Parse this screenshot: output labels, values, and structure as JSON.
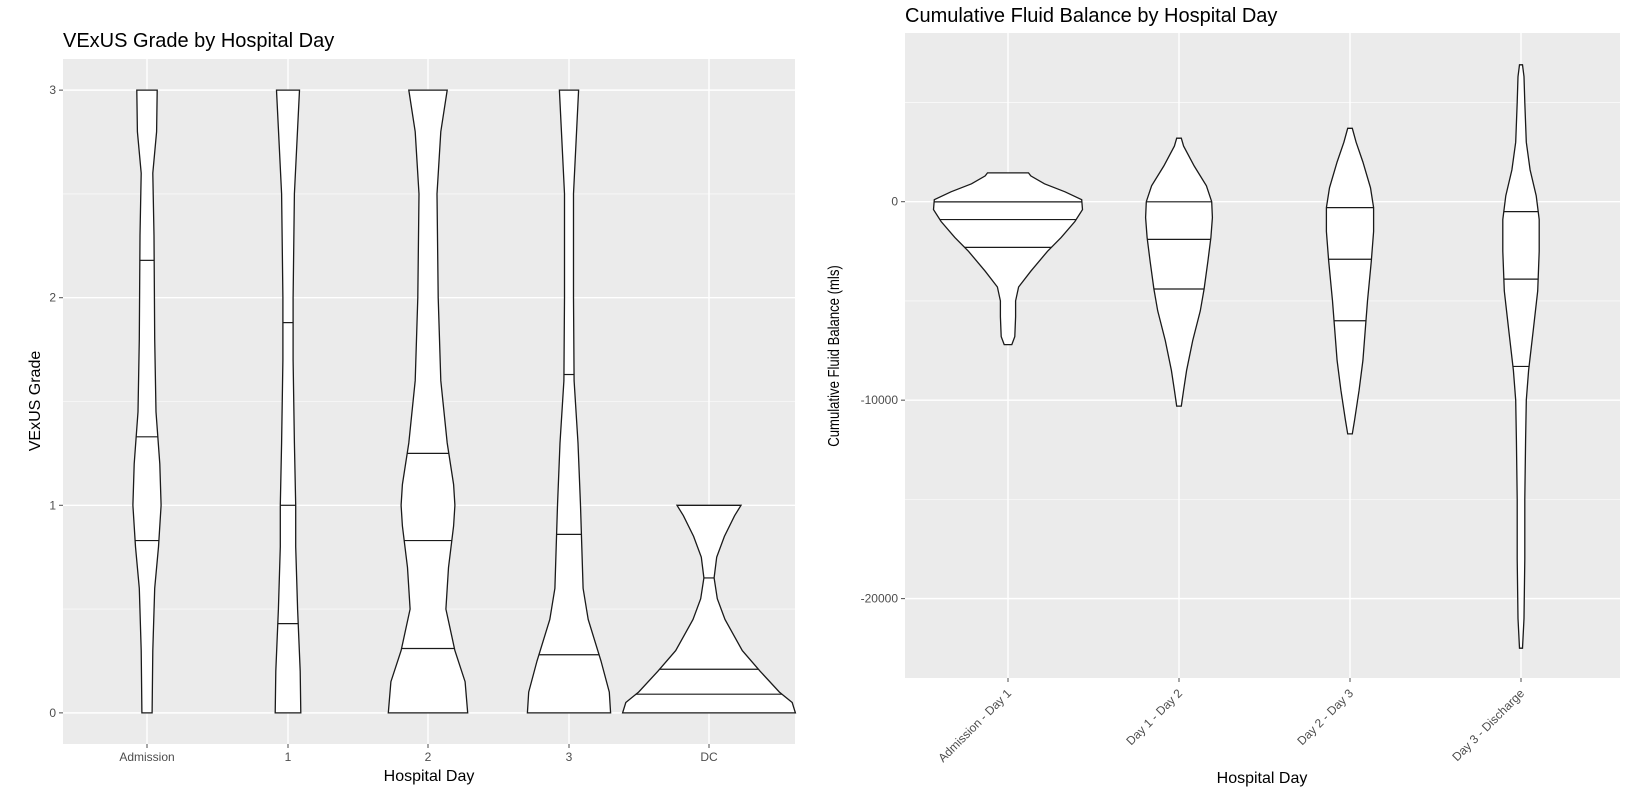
{
  "chart_data": [
    {
      "type": "violin",
      "title": "VExUS Grade by Hospital Day",
      "xlabel": "Hospital Day",
      "ylabel": "VExUS Grade",
      "categories": [
        "Admission",
        "1",
        "2",
        "3",
        "DC"
      ],
      "ylim": [
        -0.15,
        3.15
      ],
      "yticks": [
        0,
        1,
        2,
        3
      ],
      "grid": true,
      "violins": [
        {
          "category": "Admission",
          "quantiles": [
            0.83,
            1.33,
            2.18
          ],
          "profile": [
            [
              0,
              0.08
            ],
            [
              0.3,
              0.09
            ],
            [
              0.6,
              0.12
            ],
            [
              0.8,
              0.18
            ],
            [
              1.0,
              0.22
            ],
            [
              1.2,
              0.2
            ],
            [
              1.45,
              0.14
            ],
            [
              1.8,
              0.12
            ],
            [
              2.3,
              0.11
            ],
            [
              2.6,
              0.09
            ],
            [
              2.8,
              0.15
            ],
            [
              3.0,
              0.16
            ]
          ]
        },
        {
          "category": "1",
          "quantiles": [
            0.43,
            1.0,
            1.88
          ],
          "profile": [
            [
              0,
              0.2
            ],
            [
              0.2,
              0.19
            ],
            [
              0.5,
              0.15
            ],
            [
              0.8,
              0.12
            ],
            [
              1.0,
              0.12
            ],
            [
              1.3,
              0.1
            ],
            [
              1.7,
              0.08
            ],
            [
              2.0,
              0.08
            ],
            [
              2.5,
              0.1
            ],
            [
              3.0,
              0.18
            ]
          ]
        },
        {
          "category": "2",
          "quantiles": [
            0.31,
            0.83,
            1.25
          ],
          "profile": [
            [
              0,
              0.62
            ],
            [
              0.15,
              0.58
            ],
            [
              0.3,
              0.42
            ],
            [
              0.5,
              0.28
            ],
            [
              0.7,
              0.32
            ],
            [
              0.9,
              0.4
            ],
            [
              1.0,
              0.42
            ],
            [
              1.1,
              0.4
            ],
            [
              1.3,
              0.3
            ],
            [
              1.6,
              0.2
            ],
            [
              2.0,
              0.16
            ],
            [
              2.5,
              0.14
            ],
            [
              2.8,
              0.2
            ],
            [
              3.0,
              0.3
            ]
          ]
        },
        {
          "category": "3",
          "quantiles": [
            0.28,
            0.86,
            1.63
          ],
          "profile": [
            [
              0,
              0.65
            ],
            [
              0.1,
              0.63
            ],
            [
              0.25,
              0.5
            ],
            [
              0.45,
              0.3
            ],
            [
              0.6,
              0.22
            ],
            [
              0.8,
              0.2
            ],
            [
              1.0,
              0.18
            ],
            [
              1.3,
              0.14
            ],
            [
              1.6,
              0.08
            ],
            [
              2.0,
              0.07
            ],
            [
              2.5,
              0.07
            ],
            [
              3.0,
              0.15
            ]
          ]
        },
        {
          "category": "DC",
          "quantiles": [
            0.09,
            0.21,
            0.65
          ],
          "profile": [
            [
              0,
              1.35
            ],
            [
              0.05,
              1.3
            ],
            [
              0.1,
              1.1
            ],
            [
              0.2,
              0.8
            ],
            [
              0.3,
              0.52
            ],
            [
              0.45,
              0.25
            ],
            [
              0.55,
              0.13
            ],
            [
              0.65,
              0.08
            ],
            [
              0.75,
              0.12
            ],
            [
              0.85,
              0.24
            ],
            [
              0.95,
              0.4
            ],
            [
              1.0,
              0.5
            ]
          ]
        }
      ]
    },
    {
      "type": "violin",
      "title": "Cumulative Fluid Balance by Hospital Day",
      "xlabel": "Hospital Day",
      "ylabel": "Cumulative Fluid Balance (mls)",
      "categories": [
        "Admission - Day 1",
        "Day 1 - Day 2",
        "Day 2 - Day 3",
        "Day 3 - Discharge"
      ],
      "ylim": [
        -24000,
        8500
      ],
      "yticks": [
        -20000,
        -10000,
        0
      ],
      "grid": true,
      "violins": [
        {
          "category": "Admission - Day 1",
          "quantiles": [
            -2300,
            -900,
            -10
          ],
          "profile": [
            [
              -7200,
              0.05
            ],
            [
              -6800,
              0.09
            ],
            [
              -5800,
              0.1
            ],
            [
              -5000,
              0.1
            ],
            [
              -4300,
              0.14
            ],
            [
              -3500,
              0.3
            ],
            [
              -2500,
              0.52
            ],
            [
              -1800,
              0.7
            ],
            [
              -1000,
              0.88
            ],
            [
              -400,
              0.98
            ],
            [
              100,
              0.97
            ],
            [
              500,
              0.75
            ],
            [
              900,
              0.48
            ],
            [
              1300,
              0.3
            ],
            [
              1450,
              0.27
            ]
          ]
        },
        {
          "category": "Day 1 - Day 2",
          "quantiles": [
            -4400,
            -1900,
            -5
          ],
          "profile": [
            [
              -10300,
              0.03
            ],
            [
              -9500,
              0.06
            ],
            [
              -8500,
              0.1
            ],
            [
              -7000,
              0.18
            ],
            [
              -5500,
              0.28
            ],
            [
              -4400,
              0.33
            ],
            [
              -3000,
              0.38
            ],
            [
              -1800,
              0.42
            ],
            [
              -800,
              0.44
            ],
            [
              0,
              0.43
            ],
            [
              800,
              0.36
            ],
            [
              1800,
              0.2
            ],
            [
              2800,
              0.06
            ],
            [
              3200,
              0.03
            ]
          ]
        },
        {
          "category": "Day 2 - Day 3",
          "quantiles": [
            -6000,
            -2900,
            -300
          ],
          "profile": [
            [
              -11700,
              0.03
            ],
            [
              -11000,
              0.06
            ],
            [
              -9500,
              0.12
            ],
            [
              -8000,
              0.17
            ],
            [
              -6500,
              0.2
            ],
            [
              -5000,
              0.23
            ],
            [
              -3000,
              0.28
            ],
            [
              -1500,
              0.31
            ],
            [
              -300,
              0.31
            ],
            [
              700,
              0.27
            ],
            [
              2000,
              0.17
            ],
            [
              3000,
              0.08
            ],
            [
              3700,
              0.03
            ]
          ]
        },
        {
          "category": "Day 3 - Discharge",
          "quantiles": [
            -8300,
            -3900,
            -500
          ],
          "profile": [
            [
              -22500,
              0.02
            ],
            [
              -21000,
              0.04
            ],
            [
              -18000,
              0.05
            ],
            [
              -15000,
              0.05
            ],
            [
              -12000,
              0.06
            ],
            [
              -10000,
              0.07
            ],
            [
              -8500,
              0.1
            ],
            [
              -6500,
              0.16
            ],
            [
              -4500,
              0.22
            ],
            [
              -2500,
              0.24
            ],
            [
              -900,
              0.24
            ],
            [
              300,
              0.2
            ],
            [
              1600,
              0.12
            ],
            [
              3000,
              0.07
            ],
            [
              5000,
              0.05
            ],
            [
              6300,
              0.04
            ],
            [
              6900,
              0.02
            ]
          ]
        }
      ]
    }
  ]
}
